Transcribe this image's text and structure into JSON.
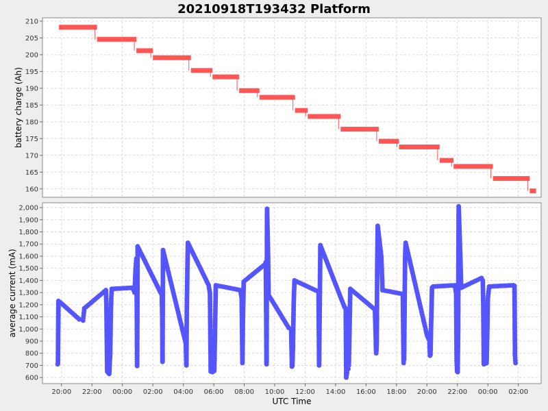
{
  "chart_data": [
    {
      "type": "step",
      "title": "20210918T193432 Platform",
      "ylabel": "battery charge (Ah)",
      "ylim": [
        157.5,
        211
      ],
      "yticks": [
        "160",
        "165",
        "170",
        "175",
        "180",
        "185",
        "190",
        "195",
        "200",
        "205",
        "210"
      ],
      "grid": true,
      "color": "#ff5555",
      "segments": [
        {
          "start": "2021-09-18T19:50",
          "end": "2021-09-18T22:20",
          "y": 208.2
        },
        {
          "start": "2021-09-18T22:20",
          "end": "2021-09-19T00:55",
          "y": 204.6
        },
        {
          "start": "2021-09-19T00:55",
          "end": "2021-09-19T02:00",
          "y": 201.2
        },
        {
          "start": "2021-09-19T02:00",
          "end": "2021-09-19T04:30",
          "y": 199.1
        },
        {
          "start": "2021-09-19T04:30",
          "end": "2021-09-19T05:55",
          "y": 195.3
        },
        {
          "start": "2021-09-19T05:55",
          "end": "2021-09-19T07:40",
          "y": 193.4
        },
        {
          "start": "2021-09-19T07:40",
          "end": "2021-09-19T09:00",
          "y": 189.3
        },
        {
          "start": "2021-09-19T09:00",
          "end": "2021-09-19T11:20",
          "y": 187.3
        },
        {
          "start": "2021-09-19T11:20",
          "end": "2021-09-19T12:10",
          "y": 183.4
        },
        {
          "start": "2021-09-19T12:10",
          "end": "2021-09-19T14:20",
          "y": 181.6
        },
        {
          "start": "2021-09-19T14:20",
          "end": "2021-09-19T16:50",
          "y": 177.8
        },
        {
          "start": "2021-09-19T16:50",
          "end": "2021-09-19T18:10",
          "y": 174.2
        },
        {
          "start": "2021-09-19T18:10",
          "end": "2021-09-19T20:50",
          "y": 172.5
        },
        {
          "start": "2021-09-19T20:50",
          "end": "2021-09-19T21:45",
          "y": 168.5
        },
        {
          "start": "2021-09-19T21:45",
          "end": "2021-09-20T00:20",
          "y": 166.7
        },
        {
          "start": "2021-09-20T00:20",
          "end": "2021-09-20T02:45",
          "y": 163.1
        },
        {
          "start": "2021-09-20T02:45",
          "end": "2021-09-20T03:10",
          "y": 159.4
        }
      ]
    },
    {
      "type": "line",
      "ylabel": "average current (mA)",
      "xlabel": "UTC Time",
      "ylim": [
        550,
        2040
      ],
      "yticks": [
        "600",
        "700",
        "800",
        "900",
        "1,000",
        "1,100",
        "1,200",
        "1,300",
        "1,400",
        "1,500",
        "1,600",
        "1,700",
        "1,800",
        "1,900",
        "2,000"
      ],
      "xlim": [
        "2021-09-18T18:45",
        "2021-09-20T03:30"
      ],
      "xticks": [
        {
          "t": "2021-09-18T20:00",
          "label": "20:00"
        },
        {
          "t": "2021-09-18T22:00",
          "label": "22:00"
        },
        {
          "t": "2021-09-19T00:00",
          "label": "00:00"
        },
        {
          "t": "2021-09-19T02:00",
          "label": "02:00"
        },
        {
          "t": "2021-09-19T04:00",
          "label": "04:00"
        },
        {
          "t": "2021-09-19T06:00",
          "label": "06:00"
        },
        {
          "t": "2021-09-19T08:00",
          "label": "08:00"
        },
        {
          "t": "2021-09-19T10:00",
          "label": "10:00"
        },
        {
          "t": "2021-09-19T12:00",
          "label": "12:00"
        },
        {
          "t": "2021-09-19T14:00",
          "label": "14:00"
        },
        {
          "t": "2021-09-19T16:00",
          "label": "16:00"
        },
        {
          "t": "2021-09-19T18:00",
          "label": "18:00"
        },
        {
          "t": "2021-09-19T20:00",
          "label": "20:00"
        },
        {
          "t": "2021-09-19T22:00",
          "label": "22:00"
        },
        {
          "t": "2021-09-20T00:00",
          "label": "00:00"
        },
        {
          "t": "2021-09-20T02:00",
          "label": "02:00"
        }
      ],
      "grid": true,
      "color": "#5555ff",
      "points": [
        [
          "2021-09-18T19:45",
          710
        ],
        [
          "2021-09-18T19:46",
          720
        ],
        [
          "2021-09-18T19:48",
          1230
        ],
        [
          "2021-09-18T19:55",
          1220
        ],
        [
          "2021-09-18T21:10",
          1080
        ],
        [
          "2021-09-18T21:25",
          1070
        ],
        [
          "2021-09-18T21:30",
          1170
        ],
        [
          "2021-09-18T22:55",
          1320
        ],
        [
          "2021-09-18T22:57",
          1210
        ],
        [
          "2021-09-18T23:00",
          650
        ],
        [
          "2021-09-18T23:04",
          640
        ],
        [
          "2021-09-18T23:08",
          630
        ],
        [
          "2021-09-18T23:12",
          800
        ],
        [
          "2021-09-18T23:14",
          1100
        ],
        [
          "2021-09-18T23:16",
          1250
        ],
        [
          "2021-09-18T23:18",
          1330
        ],
        [
          "2021-09-19T00:40",
          1340
        ],
        [
          "2021-09-19T00:48",
          1300
        ],
        [
          "2021-09-19T00:52",
          1500
        ],
        [
          "2021-09-19T00:55",
          1580
        ],
        [
          "2021-09-19T00:57",
          1100
        ],
        [
          "2021-09-19T00:58",
          695
        ],
        [
          "2021-09-19T01:00",
          1680
        ],
        [
          "2021-09-19T02:35",
          1280
        ],
        [
          "2021-09-19T02:37",
          1100
        ],
        [
          "2021-09-19T02:38",
          730
        ],
        [
          "2021-09-19T02:40",
          1650
        ],
        [
          "2021-09-19T04:05",
          920
        ],
        [
          "2021-09-19T04:10",
          880
        ],
        [
          "2021-09-19T04:12",
          700
        ],
        [
          "2021-09-19T04:14",
          1200
        ],
        [
          "2021-09-19T04:16",
          1480
        ],
        [
          "2021-09-19T04:18",
          1710
        ],
        [
          "2021-09-19T05:40",
          1360
        ],
        [
          "2021-09-19T05:45",
          1290
        ],
        [
          "2021-09-19T05:48",
          650
        ],
        [
          "2021-09-19T05:55",
          645
        ],
        [
          "2021-09-19T06:02",
          655
        ],
        [
          "2021-09-19T06:05",
          1000
        ],
        [
          "2021-09-19T06:08",
          1360
        ],
        [
          "2021-09-19T07:45",
          1320
        ],
        [
          "2021-09-19T07:50",
          1250
        ],
        [
          "2021-09-19T07:53",
          720
        ],
        [
          "2021-09-19T07:55",
          1100
        ],
        [
          "2021-09-19T07:58",
          1390
        ],
        [
          "2021-09-19T09:20",
          1530
        ],
        [
          "2021-09-19T09:25",
          1550
        ],
        [
          "2021-09-19T09:28",
          710
        ],
        [
          "2021-09-19T09:30",
          1990
        ],
        [
          "2021-09-19T09:32",
          1800
        ],
        [
          "2021-09-19T09:34",
          1600
        ],
        [
          "2021-09-19T09:36",
          1280
        ],
        [
          "2021-09-19T10:55",
          1010
        ],
        [
          "2021-09-19T11:05",
          1000
        ],
        [
          "2021-09-19T11:08",
          690
        ],
        [
          "2021-09-19T11:10",
          700
        ],
        [
          "2021-09-19T11:12",
          860
        ],
        [
          "2021-09-19T11:15",
          1220
        ],
        [
          "2021-09-19T11:18",
          1400
        ],
        [
          "2021-09-19T12:50",
          1310
        ],
        [
          "2021-09-19T12:53",
          1300
        ],
        [
          "2021-09-19T12:55",
          700
        ],
        [
          "2021-09-19T12:57",
          1100
        ],
        [
          "2021-09-19T13:00",
          1690
        ],
        [
          "2021-09-19T14:35",
          1180
        ],
        [
          "2021-09-19T14:40",
          1170
        ],
        [
          "2021-09-19T14:42",
          600
        ],
        [
          "2021-09-19T14:45",
          640
        ],
        [
          "2021-09-19T14:50",
          670
        ],
        [
          "2021-09-19T14:52",
          700
        ],
        [
          "2021-09-19T14:55",
          1000
        ],
        [
          "2021-09-19T14:58",
          1330
        ],
        [
          "2021-09-19T16:35",
          1160
        ],
        [
          "2021-09-19T16:40",
          800
        ],
        [
          "2021-09-19T16:42",
          870
        ],
        [
          "2021-09-19T16:44",
          1500
        ],
        [
          "2021-09-19T16:46",
          1850
        ],
        [
          "2021-09-19T17:00",
          1600
        ],
        [
          "2021-09-19T17:05",
          1320
        ],
        [
          "2021-09-19T18:20",
          1290
        ],
        [
          "2021-09-19T18:25",
          1280
        ],
        [
          "2021-09-19T18:28",
          720
        ],
        [
          "2021-09-19T18:30",
          750
        ],
        [
          "2021-09-19T18:32",
          1200
        ],
        [
          "2021-09-19T18:34",
          1600
        ],
        [
          "2021-09-19T18:36",
          1710
        ],
        [
          "2021-09-19T20:00",
          950
        ],
        [
          "2021-09-19T20:10",
          900
        ],
        [
          "2021-09-19T20:12",
          780
        ],
        [
          "2021-09-19T20:14",
          790
        ],
        [
          "2021-09-19T20:16",
          1000
        ],
        [
          "2021-09-19T20:20",
          1340
        ],
        [
          "2021-09-19T20:25",
          1350
        ],
        [
          "2021-09-19T21:50",
          1360
        ],
        [
          "2021-09-19T21:55",
          1290
        ],
        [
          "2021-09-19T21:57",
          740
        ],
        [
          "2021-09-19T21:59",
          650
        ],
        [
          "2021-09-19T22:01",
          645
        ],
        [
          "2021-09-19T22:03",
          990
        ],
        [
          "2021-09-19T22:05",
          2010
        ],
        [
          "2021-09-19T22:10",
          1700
        ],
        [
          "2021-09-19T22:15",
          1340
        ],
        [
          "2021-09-19T23:35",
          1420
        ],
        [
          "2021-09-19T23:40",
          1400
        ],
        [
          "2021-09-19T23:42",
          1200
        ],
        [
          "2021-09-19T23:44",
          710
        ],
        [
          "2021-09-19T23:50",
          715
        ],
        [
          "2021-09-19T23:55",
          720
        ],
        [
          "2021-09-19T23:58",
          1000
        ],
        [
          "2021-09-20T00:00",
          1250
        ],
        [
          "2021-09-20T00:05",
          1350
        ],
        [
          "2021-09-20T01:40",
          1360
        ],
        [
          "2021-09-20T01:45",
          1355
        ],
        [
          "2021-09-20T01:47",
          780
        ],
        [
          "2021-09-20T01:49",
          720
        ]
      ]
    }
  ]
}
